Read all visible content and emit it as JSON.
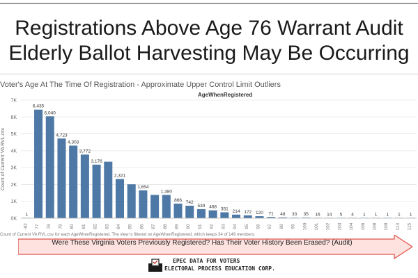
{
  "header": {
    "title_line1": "Registrations Above Age 76 Warrant Audit",
    "title_line2": "Elderly Ballot Harvesting May Be Occurring"
  },
  "chart_data": {
    "type": "bar",
    "title": "Voter's Age At The Time Of Registration - Approximate Upper Control Limit Outliers",
    "column_header": "AgeWhenRegistered",
    "ylabel": "Count of Current VA RVL.csv",
    "ylim": [
      0,
      7000
    ],
    "yticks": [
      "0K",
      "1K",
      "2K",
      "3K",
      "4K",
      "5K",
      "6K",
      "7K"
    ],
    "grid": true,
    "color": "#4e79a7",
    "categories": [
      "-82",
      "77",
      "78",
      "79",
      "80",
      "81",
      "82",
      "83",
      "84",
      "85",
      "86",
      "87",
      "88",
      "89",
      "90",
      "91",
      "92",
      "93",
      "94",
      "95",
      "96",
      "97",
      "98",
      "99",
      "100",
      "101",
      "102",
      "103",
      "104",
      "106",
      "108",
      "109",
      "113",
      "115"
    ],
    "values": [
      1,
      6435,
      6040,
      4723,
      4303,
      3772,
      3176,
      3350,
      2321,
      2010,
      1654,
      1380,
      1380,
      866,
      742,
      539,
      468,
      351,
      214,
      172,
      120,
      71,
      48,
      33,
      35,
      16,
      14,
      5,
      4,
      1,
      1,
      1,
      1,
      1
    ],
    "labels": [
      "1",
      "6,435",
      "6,040",
      "4,723",
      "4,303",
      "3,772",
      "3,176",
      "",
      "2,321",
      "",
      "1,654",
      "",
      "1,380",
      "866",
      "742",
      "539",
      "468",
      "351",
      "214",
      "172",
      "120",
      "71",
      "48",
      "33",
      "35",
      "16",
      "14",
      "5",
      "4",
      "1",
      "1",
      "1",
      "1",
      "1"
    ],
    "caption": "Count of Current VA RVL.csv for each AgeWhenRegistered. The view is filtered on AgeWhenRegistered, which keeps 34 of 149 members."
  },
  "banner": {
    "text": "Were These Virginia Voters Previously Registered?  Has Their Voter History Been Erased? (Audit)",
    "fill": "#fde2df",
    "stroke": "#e0524a"
  },
  "footer": {
    "org_line1": "EPEC DATA FOR VOTERS",
    "org_line2": "ELECTORAL PROCESS EDUCATION CORP.",
    "logo_icon": "ballot-box-icon"
  }
}
